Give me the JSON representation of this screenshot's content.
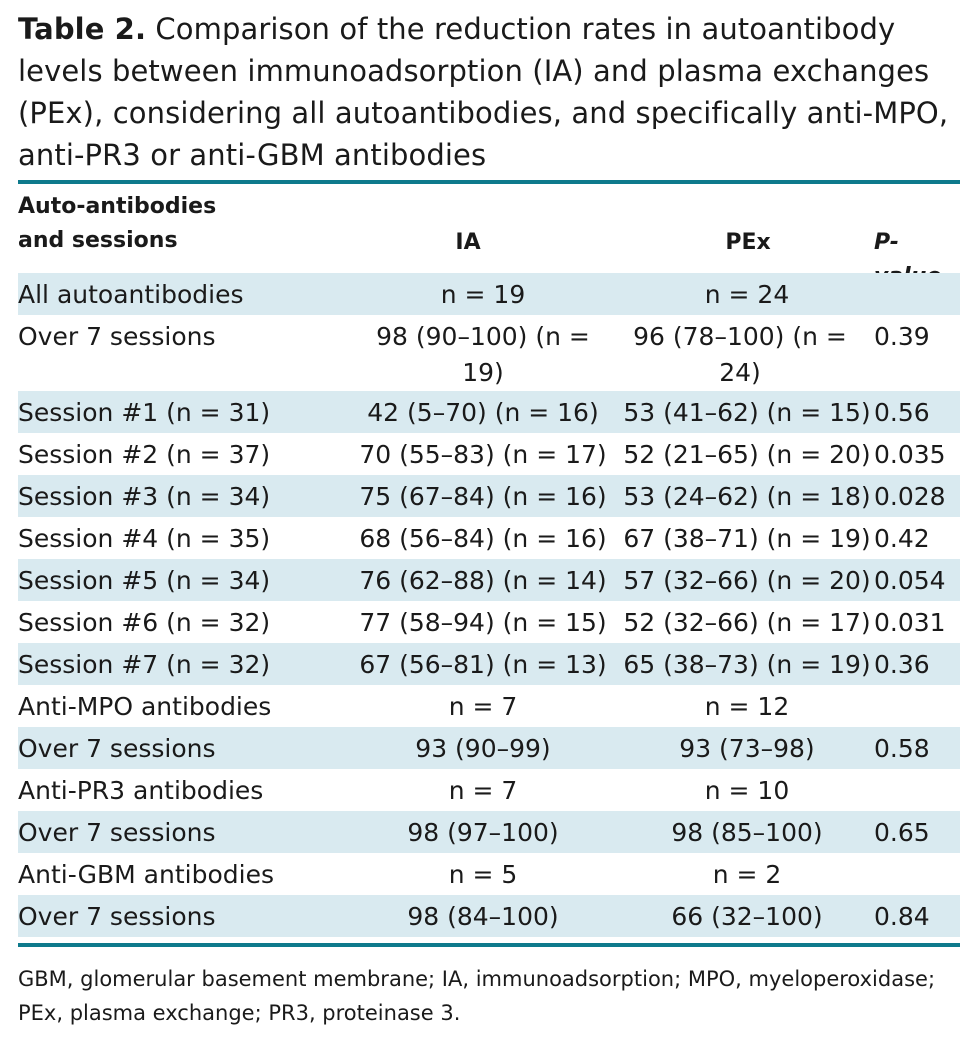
{
  "caption": {
    "label": "Table 2.",
    "text": "Comparison of the reduction rates in autoantibody levels between immunoadsorption (IA) and plasma exchanges (PEx), considering all autoantibodies, and specifically anti-MPO, anti-PR3 or anti-GBM antibodies"
  },
  "header": {
    "col0": "Auto-antibodies and sessions",
    "col1": "IA",
    "col2": "PEx",
    "col3": "P-value"
  },
  "rows": [
    {
      "label": "All autoantibodies",
      "ia": "n = 19",
      "pex": "n = 24",
      "p": ""
    },
    {
      "label": "Over 7 sessions",
      "ia": "98 (90–100) (n = 19)",
      "pex": "96 (78–100) (n = 24)",
      "p": "0.39"
    },
    {
      "label": "Session #1 (n = 31)",
      "ia": "42 (5–70) (n = 16)",
      "pex": "53 (41–62) (n = 15)",
      "p": "0.56"
    },
    {
      "label": "Session #2 (n = 37)",
      "ia": "70 (55–83) (n = 17)",
      "pex": "52 (21–65) (n = 20)",
      "p": "0.035"
    },
    {
      "label": "Session #3 (n = 34)",
      "ia": "75 (67–84) (n = 16)",
      "pex": "53 (24–62) (n = 18)",
      "p": "0.028"
    },
    {
      "label": "Session #4 (n = 35)",
      "ia": "68 (56–84) (n = 16)",
      "pex": "67 (38–71) (n = 19)",
      "p": "0.42"
    },
    {
      "label": "Session #5 (n = 34)",
      "ia": "76 (62–88) (n = 14)",
      "pex": "57 (32–66) (n = 20)",
      "p": "0.054"
    },
    {
      "label": "Session #6 (n = 32)",
      "ia": "77 (58–94) (n = 15)",
      "pex": "52 (32–66) (n = 17)",
      "p": "0.031"
    },
    {
      "label": "Session #7 (n = 32)",
      "ia": "67 (56–81) (n = 13)",
      "pex": "65 (38–73) (n = 19)",
      "p": "0.36"
    },
    {
      "label": "Anti-MPO antibodies",
      "ia": "n = 7",
      "pex": "n = 12",
      "p": ""
    },
    {
      "label": "Over 7 sessions",
      "ia": "93 (90–99)",
      "pex": "93 (73–98)",
      "p": "0.58"
    },
    {
      "label": "Anti-PR3 antibodies",
      "ia": "n = 7",
      "pex": "n = 10",
      "p": ""
    },
    {
      "label": "Over 7 sessions",
      "ia": "98 (97–100)",
      "pex": "98 (85–100)",
      "p": "0.65"
    },
    {
      "label": "Anti-GBM antibodies",
      "ia": "n = 5",
      "pex": "n = 2",
      "p": ""
    },
    {
      "label": "Over 7 sessions",
      "ia": "98 (84–100)",
      "pex": "66 (32–100)",
      "p": "0.84"
    }
  ],
  "footnote": "GBM, glomerular basement membrane; IA, immunoadsorption; MPO, myeloperoxidase; PEx, plasma exchange; PR3, proteinase 3."
}
